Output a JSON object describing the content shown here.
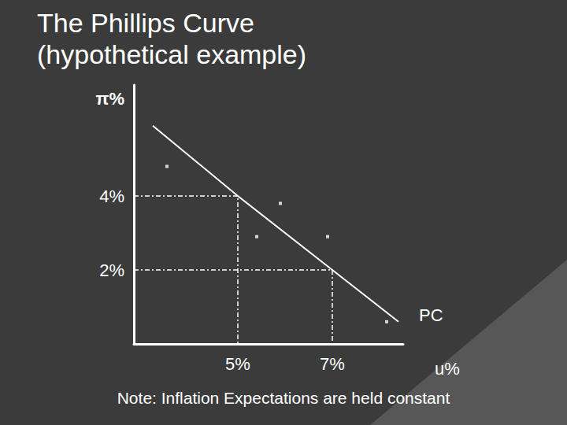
{
  "chart_data": {
    "type": "line",
    "title": "The Phillips Curve\n(hypothetical example)",
    "note": "Note: Inflation Expectations are held constant",
    "x_label": "u%",
    "y_label": "π%",
    "xlim": [
      2.8,
      8.5
    ],
    "ylim": [
      0,
      7
    ],
    "xticks": [
      {
        "value": 5,
        "label": "5%"
      },
      {
        "value": 7,
        "label": "7%"
      }
    ],
    "yticks": [
      {
        "value": 2,
        "label": "2%"
      },
      {
        "value": 4,
        "label": "4%"
      }
    ],
    "grid": false,
    "series": [
      {
        "name": "PC",
        "type": "line",
        "color": "#ffffff",
        "line_style": "solid",
        "x": [
          3.2,
          5,
          7,
          8.4
        ],
        "values": [
          5.9,
          4,
          2,
          0.6
        ]
      },
      {
        "type": "scatter",
        "color": "#ffffff",
        "marker": "square",
        "x": [
          3.5,
          5.9,
          5.4,
          6.9,
          8.15
        ],
        "values": [
          4.8,
          3.8,
          2.9,
          2.9,
          0.6
        ]
      }
    ],
    "reference_points": [
      [
        5,
        4
      ],
      [
        7,
        2
      ]
    ]
  }
}
